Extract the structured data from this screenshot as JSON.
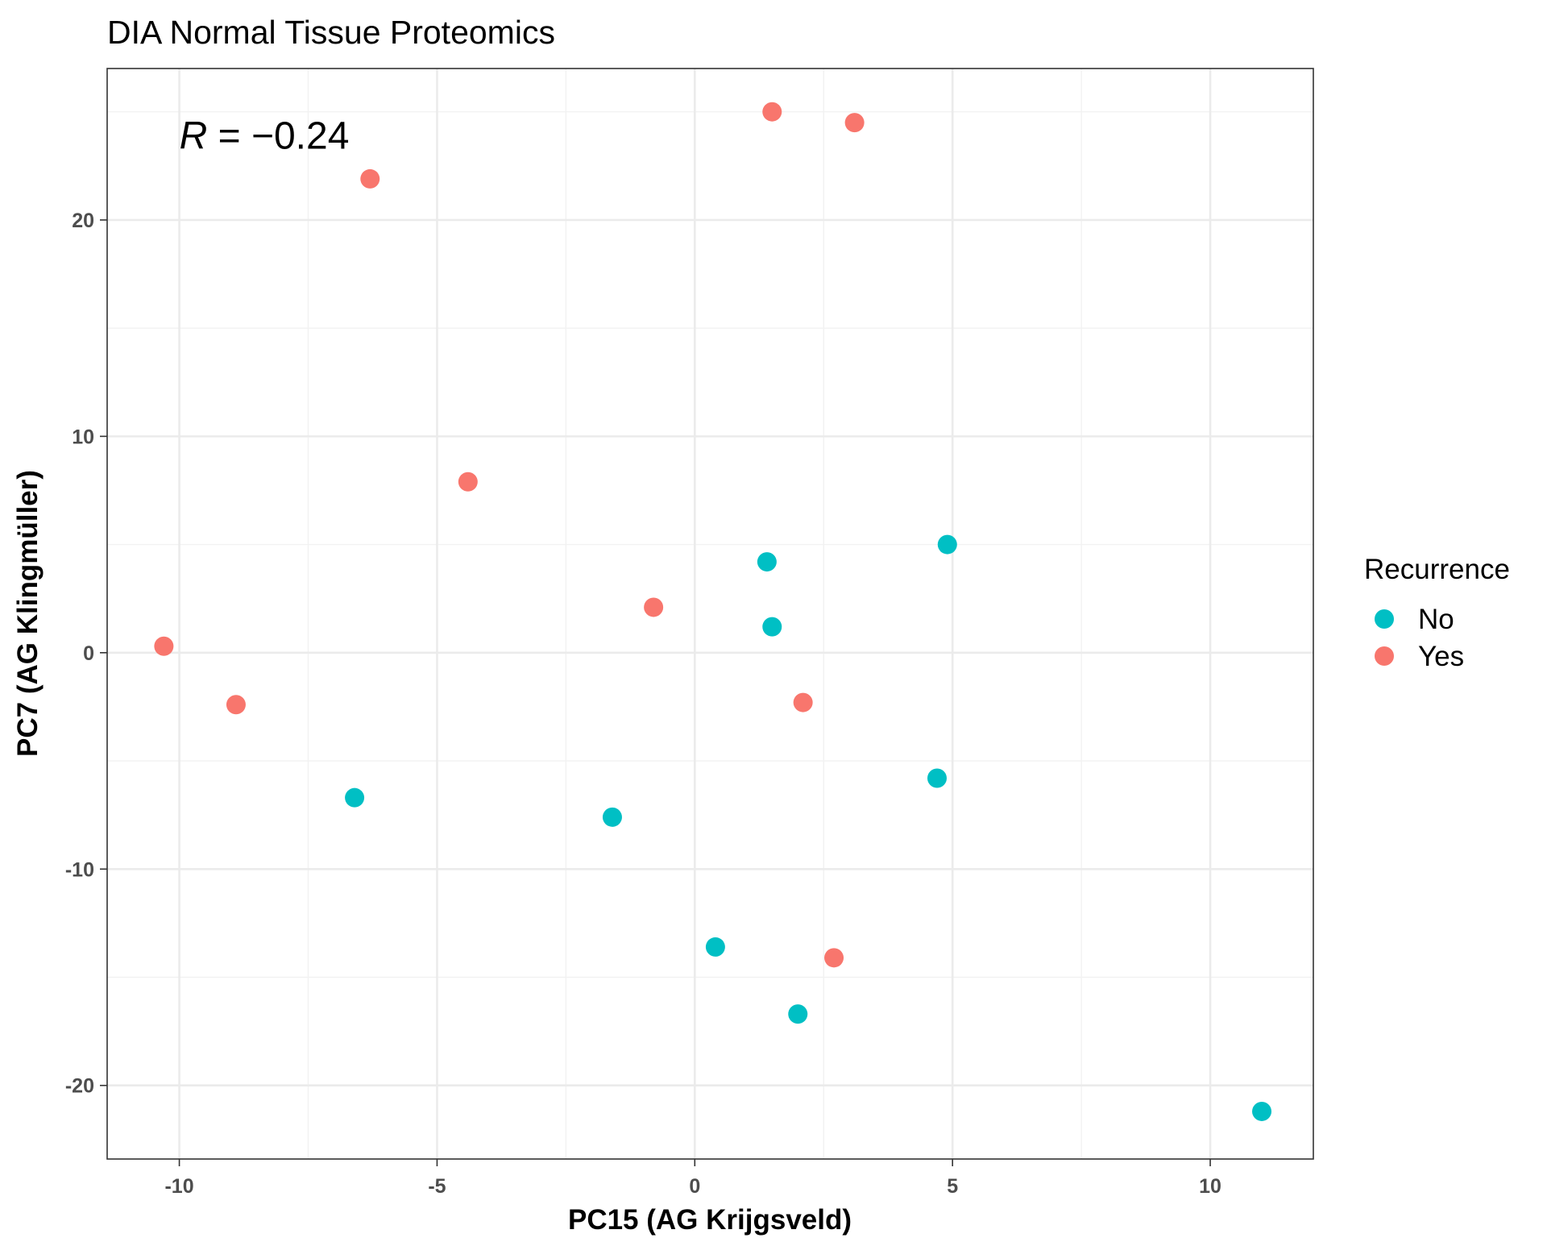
{
  "chart_data": {
    "type": "scatter",
    "title": "DIA Normal Tissue Proteomics",
    "xlabel": "PC15 (AG Krijgsveld)",
    "ylabel": "PC7 (AG Klingmüller)",
    "xlim": [
      -11.4,
      12.0
    ],
    "ylim": [
      -23.4,
      27.0
    ],
    "x_ticks": [
      -10,
      -5,
      0,
      5,
      10
    ],
    "x_tick_labels": [
      "-10",
      "-5",
      "0",
      "5",
      "10"
    ],
    "y_ticks": [
      -20,
      -10,
      0,
      10,
      20
    ],
    "y_tick_labels": [
      "-20",
      "-10",
      "0",
      "10",
      "20"
    ],
    "grid": true,
    "legend": {
      "title": "Recurrence",
      "placement": "right"
    },
    "annotation": {
      "symbol": "R",
      "text": " = −0.24",
      "x": -10.0,
      "y": 23.3
    },
    "series": [
      {
        "name": "No",
        "color": "#00BFC4",
        "points": [
          {
            "x": 1.4,
            "y": 4.2
          },
          {
            "x": 4.9,
            "y": 5.0
          },
          {
            "x": 1.5,
            "y": 1.2
          },
          {
            "x": -6.6,
            "y": -6.7
          },
          {
            "x": -1.6,
            "y": -7.6
          },
          {
            "x": 4.7,
            "y": -5.8
          },
          {
            "x": 0.4,
            "y": -13.6
          },
          {
            "x": 2.0,
            "y": -16.7
          },
          {
            "x": 11.0,
            "y": -21.2
          }
        ]
      },
      {
        "name": "Yes",
        "color": "#F8766D",
        "points": [
          {
            "x": 1.5,
            "y": 25.0
          },
          {
            "x": 3.1,
            "y": 24.5
          },
          {
            "x": -6.3,
            "y": 21.9
          },
          {
            "x": -4.4,
            "y": 7.9
          },
          {
            "x": -0.8,
            "y": 2.1
          },
          {
            "x": -10.3,
            "y": 0.3
          },
          {
            "x": -8.9,
            "y": -2.4
          },
          {
            "x": 2.1,
            "y": -2.3
          },
          {
            "x": 2.7,
            "y": -14.1
          }
        ]
      }
    ]
  }
}
